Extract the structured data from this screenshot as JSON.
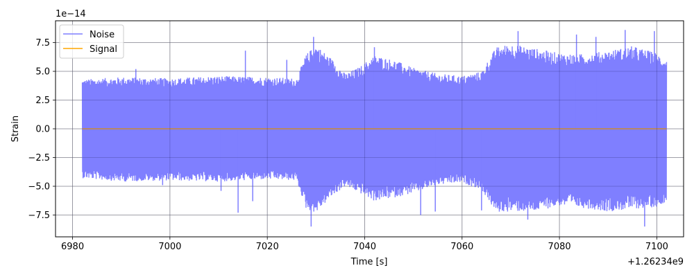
{
  "chart_data": {
    "type": "line",
    "title": "",
    "xlabel": "Time [s]",
    "ylabel": "Strain",
    "x_offset_text": "+1.26234e9",
    "y_scale_text": "1e−14",
    "xlim": [
      6976.5,
      7105.5
    ],
    "ylim": [
      -9.4,
      9.4
    ],
    "x_ticks": [
      6980,
      7000,
      7020,
      7040,
      7060,
      7080,
      7100
    ],
    "x_tick_labels": [
      "6980",
      "7000",
      "7020",
      "7040",
      "7060",
      "7080",
      "7100"
    ],
    "y_ticks": [
      -7.5,
      -5.0,
      -2.5,
      0.0,
      2.5,
      5.0,
      7.5
    ],
    "y_tick_labels": [
      "−7.5",
      "−5.0",
      "−2.5",
      "0.0",
      "2.5",
      "5.0",
      "7.5"
    ],
    "grid": true,
    "legend_position": "upper-left",
    "series": [
      {
        "name": "Noise",
        "color": "#7f7fff",
        "style": "dense-oscillation",
        "x_start": 6982.0,
        "x_end": 7102.0,
        "envelope": {
          "x": [
            6982,
            6990,
            7000,
            7010,
            7020,
            7026,
            7028,
            7030,
            7033,
            7036,
            7039,
            7042,
            7046,
            7050,
            7055,
            7060,
            7064,
            7067,
            7070,
            7075,
            7080,
            7085,
            7090,
            7095,
            7100,
            7102
          ],
          "upper": [
            4.3,
            4.5,
            4.4,
            4.6,
            4.5,
            4.4,
            6.5,
            7.3,
            6.2,
            4.8,
            5.4,
            6.4,
            6.0,
            5.3,
            4.8,
            4.6,
            5.0,
            7.1,
            7.4,
            7.0,
            6.6,
            6.5,
            6.8,
            7.2,
            6.6,
            6.0
          ],
          "lower": [
            -4.3,
            -4.6,
            -4.5,
            -4.6,
            -4.4,
            -4.5,
            -7.0,
            -7.3,
            -6.0,
            -5.0,
            -5.6,
            -6.3,
            -6.0,
            -5.6,
            -4.9,
            -4.7,
            -5.3,
            -7.3,
            -7.2,
            -7.2,
            -6.7,
            -6.9,
            -7.2,
            -7.0,
            -6.8,
            -6.3
          ]
        },
        "spikes": [
          {
            "x": 6993,
            "y": 5.2
          },
          {
            "x": 6998.5,
            "y": -4.9
          },
          {
            "x": 7010.5,
            "y": -5.4
          },
          {
            "x": 7014,
            "y": -7.3
          },
          {
            "x": 7015.5,
            "y": 6.8
          },
          {
            "x": 7017,
            "y": -6.3
          },
          {
            "x": 7024,
            "y": 6.0
          },
          {
            "x": 7029,
            "y": -8.5
          },
          {
            "x": 7029.5,
            "y": 8.0
          },
          {
            "x": 7042,
            "y": 7.1
          },
          {
            "x": 7051.5,
            "y": -7.5
          },
          {
            "x": 7054.5,
            "y": -7.2
          },
          {
            "x": 7064,
            "y": -7.1
          },
          {
            "x": 7071.5,
            "y": 8.5
          },
          {
            "x": 7073.5,
            "y": -7.9
          },
          {
            "x": 7083.5,
            "y": 8.2
          },
          {
            "x": 7087.5,
            "y": 8.0
          },
          {
            "x": 7093.5,
            "y": 8.6
          },
          {
            "x": 7097.5,
            "y": -8.5
          },
          {
            "x": 7099.5,
            "y": 8.5
          }
        ]
      },
      {
        "name": "Signal",
        "color": "#ffa500",
        "style": "line",
        "x": [
          6982,
          7102
        ],
        "y": [
          0,
          0
        ]
      }
    ]
  }
}
